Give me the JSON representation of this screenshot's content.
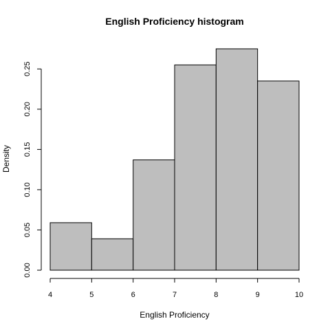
{
  "chart_data": {
    "type": "bar",
    "title": "English Proficiency histogram",
    "xlabel": "English Proficiency",
    "ylabel": "Density",
    "bins": [
      [
        4,
        5
      ],
      [
        5,
        6
      ],
      [
        6,
        7
      ],
      [
        7,
        8
      ],
      [
        8,
        9
      ],
      [
        9,
        10
      ]
    ],
    "values": [
      0.059,
      0.039,
      0.137,
      0.255,
      0.275,
      0.235
    ],
    "x_ticks": [
      4,
      5,
      6,
      7,
      8,
      9,
      10
    ],
    "x_tick_labels": [
      "4",
      "5",
      "6",
      "7",
      "8",
      "9",
      "10"
    ],
    "y_ticks": [
      0,
      0.05,
      0.1,
      0.15,
      0.2,
      0.25
    ],
    "y_tick_labels": [
      "0.00",
      "0.05",
      "0.10",
      "0.15",
      "0.20",
      "0.25"
    ],
    "xlim": [
      4,
      10
    ],
    "ylim": [
      0,
      0.28
    ],
    "grid": false,
    "colors": {
      "bar_fill": "#bebebe",
      "bar_stroke": "#000000"
    }
  }
}
